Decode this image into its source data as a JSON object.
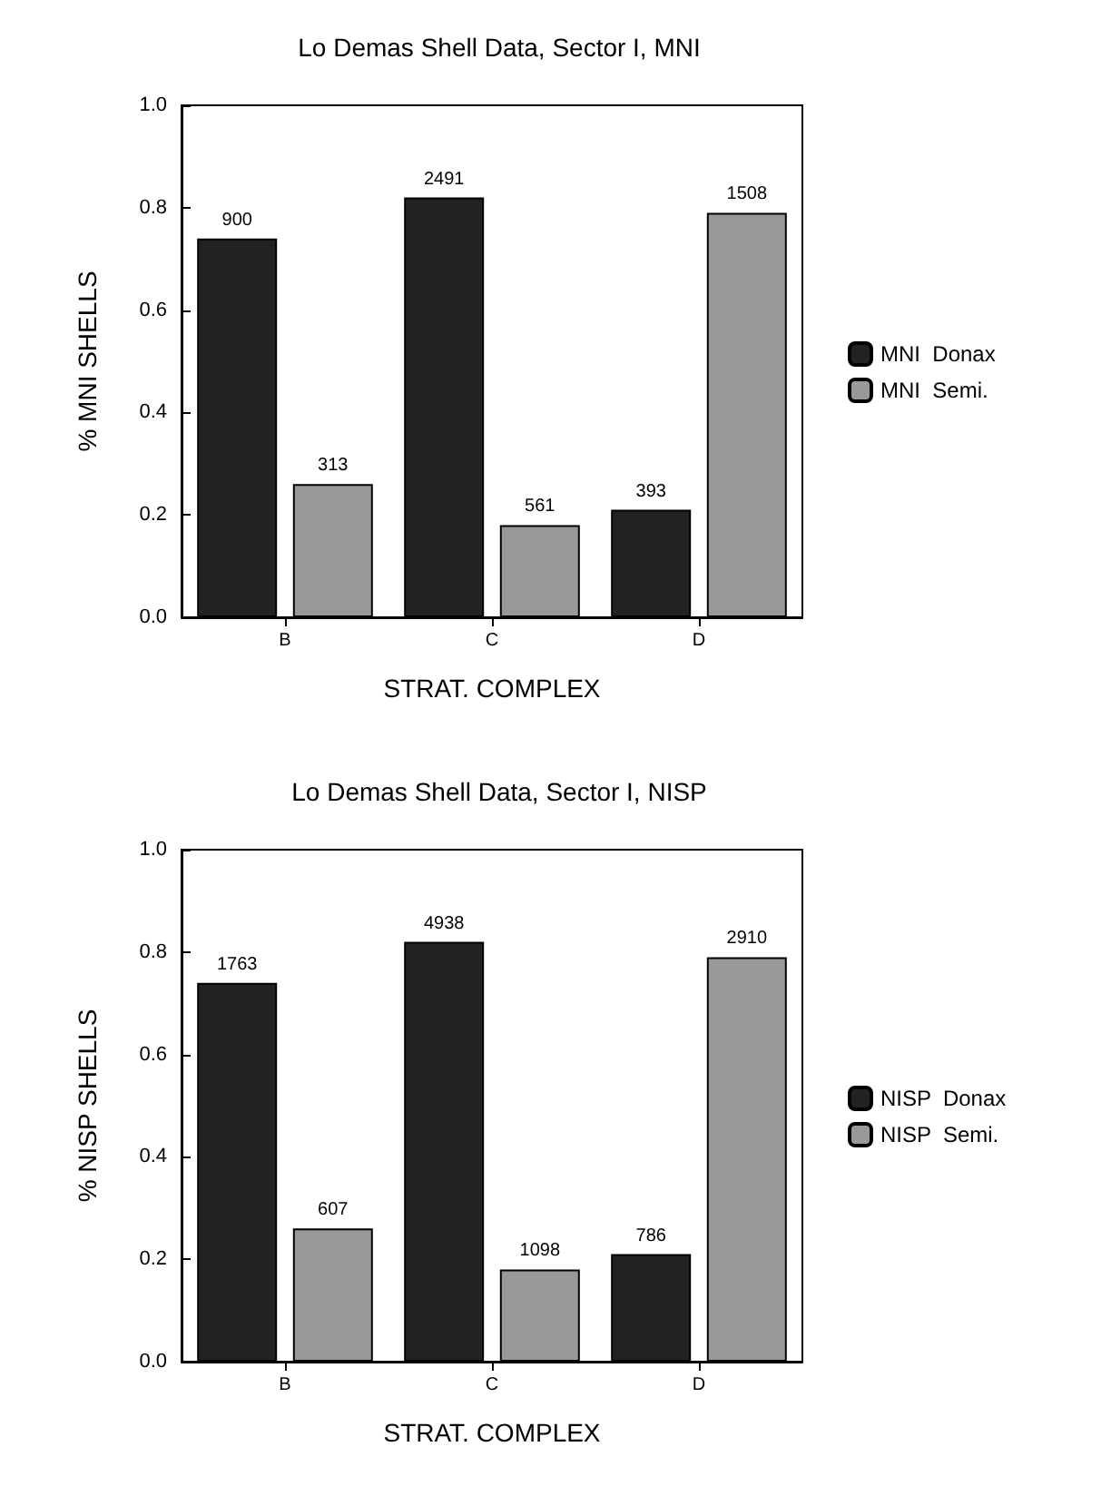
{
  "chart_data": [
    {
      "type": "bar",
      "title": "Lo Demas Shell Data, Sector I, MNI",
      "xlabel": "STRAT. COMPLEX",
      "ylabel": "% MNI SHELLS",
      "categories": [
        "B",
        "C",
        "D"
      ],
      "series": [
        {
          "name": "MNI  Donax",
          "color": "#222222",
          "values": [
            0.74,
            0.82,
            0.21
          ]
        },
        {
          "name": "MNI  Semi.",
          "color": "#999999",
          "values": [
            0.26,
            0.18,
            0.79
          ]
        }
      ],
      "annotations": [
        "900",
        "2491",
        "393",
        "313",
        "561",
        "1508"
      ],
      "ylim": [
        0,
        1
      ],
      "yticks": [
        {
          "value": 0,
          "label": "0.0"
        },
        {
          "value": 0.2,
          "label": "0.2"
        },
        {
          "value": 0.4,
          "label": "0.4"
        },
        {
          "value": 0.6,
          "label": "0.6"
        },
        {
          "value": 0.8,
          "label": "0.8"
        },
        {
          "value": 1,
          "label": "1.0"
        }
      ],
      "grid": false,
      "legend": "right"
    },
    {
      "type": "bar",
      "title": "Lo Demas Shell Data, Sector I, NISP",
      "xlabel": "STRAT. COMPLEX",
      "ylabel": "% NISP SHELLS",
      "categories": [
        "B",
        "C",
        "D"
      ],
      "series": [
        {
          "name": "NISP  Donax",
          "color": "#222222",
          "values": [
            0.74,
            0.82,
            0.21
          ]
        },
        {
          "name": "NISP  Semi.",
          "color": "#999999",
          "values": [
            0.26,
            0.18,
            0.79
          ]
        }
      ],
      "annotations": [
        "1763",
        "4938",
        "786",
        "607",
        "1098",
        "2910"
      ],
      "ylim": [
        0,
        1
      ],
      "yticks": [
        {
          "value": 0,
          "label": "0.0"
        },
        {
          "value": 0.2,
          "label": "0.2"
        },
        {
          "value": 0.4,
          "label": "0.4"
        },
        {
          "value": 0.6,
          "label": "0.6"
        },
        {
          "value": 0.8,
          "label": "0.8"
        },
        {
          "value": 1,
          "label": "1.0"
        }
      ],
      "grid": false,
      "legend": "right"
    }
  ]
}
